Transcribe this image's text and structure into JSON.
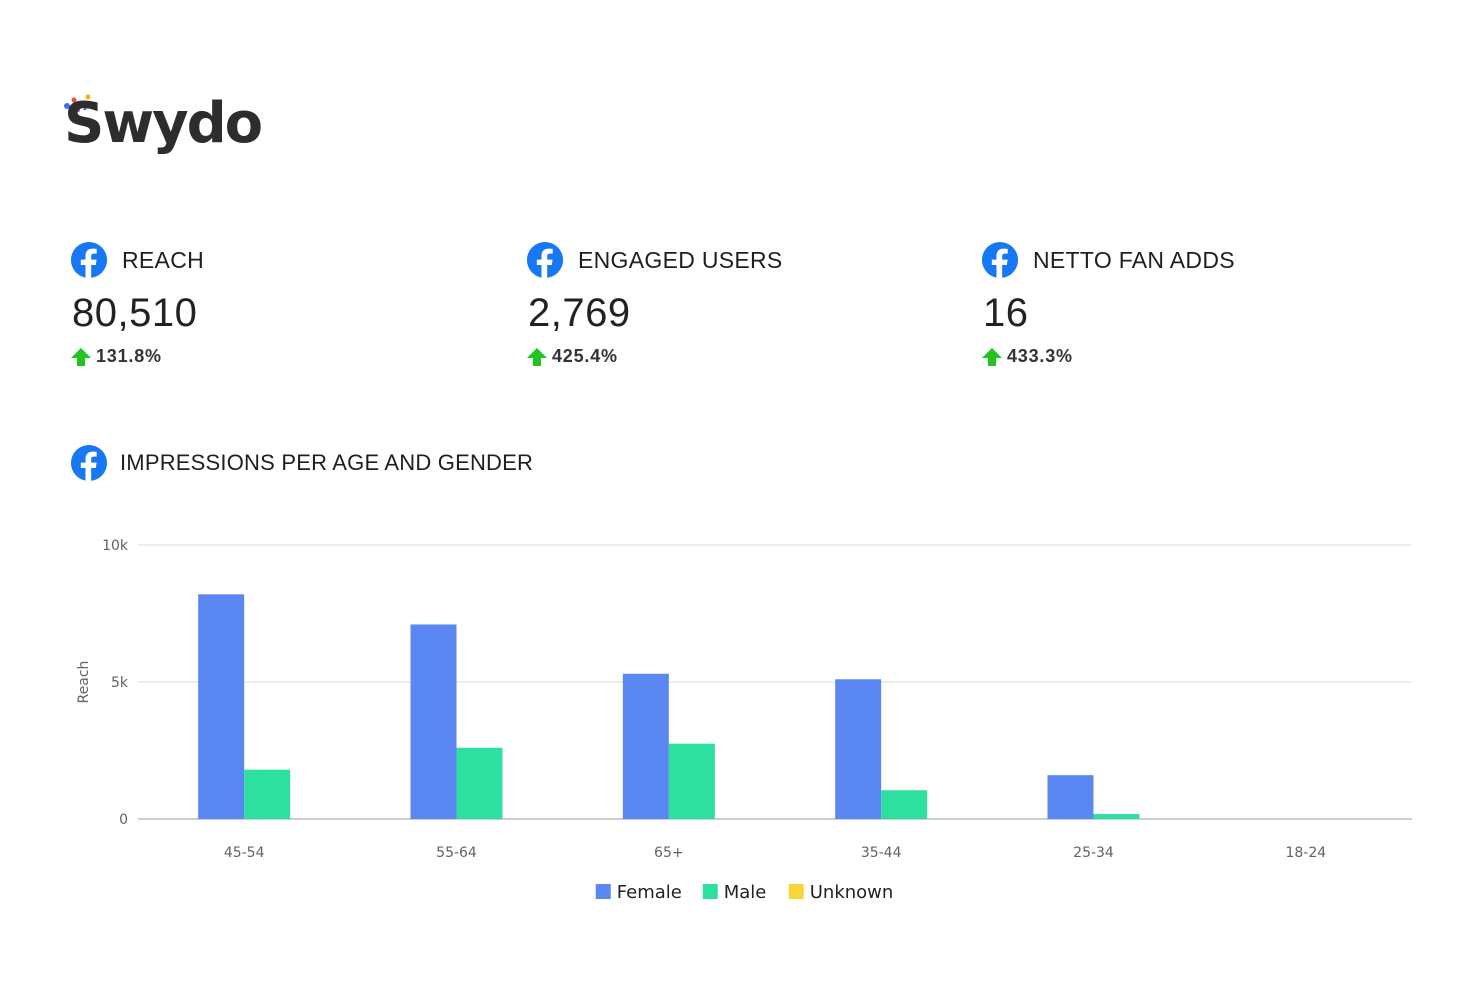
{
  "logo": {
    "text": "Swydo"
  },
  "kpis": [
    {
      "title": "REACH",
      "value": "80,510",
      "change": "131.8%",
      "icon": "facebook-icon",
      "trend": "up"
    },
    {
      "title": "ENGAGED USERS",
      "value": "2,769",
      "change": "425.4%",
      "icon": "facebook-icon",
      "trend": "up"
    },
    {
      "title": "NETTO FAN ADDS",
      "value": "16",
      "change": "433.3%",
      "icon": "facebook-icon",
      "trend": "up"
    }
  ],
  "chart_header": {
    "title": "IMPRESSIONS PER AGE AND GENDER",
    "icon": "facebook-icon"
  },
  "colors": {
    "facebook": "#1877f2",
    "up_arrow": "#22c322",
    "female": "#5b87f2",
    "male": "#2ee0a0",
    "unknown": "#f7d63a",
    "grid": "#dddddd",
    "baseline": "#bdbdbd"
  },
  "chart_data": {
    "type": "bar",
    "title": "",
    "xlabel": "",
    "ylabel": "Reach",
    "ylim": [
      0,
      10000
    ],
    "yticks": [
      {
        "value": 0,
        "label": "0"
      },
      {
        "value": 5000,
        "label": "5k"
      },
      {
        "value": 10000,
        "label": "10k"
      }
    ],
    "grid": true,
    "legend_position": "bottom",
    "categories": [
      "45-54",
      "55-64",
      "65+",
      "35-44",
      "25-34",
      "18-24"
    ],
    "series": [
      {
        "name": "Female",
        "color": "#5b87f2",
        "values": [
          8200,
          7100,
          5300,
          5100,
          1600,
          0
        ]
      },
      {
        "name": "Male",
        "color": "#2ee0a0",
        "values": [
          1800,
          2600,
          2750,
          1050,
          180,
          0
        ]
      },
      {
        "name": "Unknown",
        "color": "#f7d63a",
        "values": [
          0,
          0,
          0,
          0,
          0,
          0
        ]
      }
    ]
  }
}
